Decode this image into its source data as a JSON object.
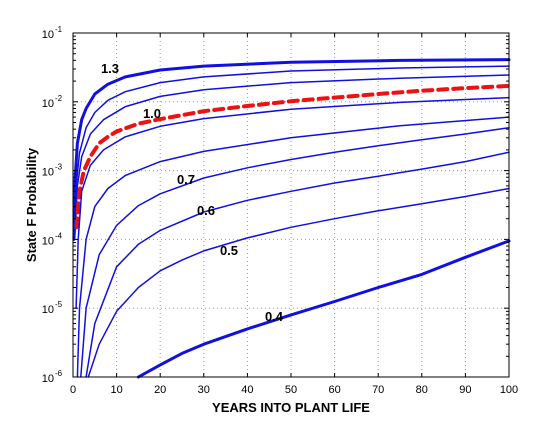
{
  "chart_data": {
    "type": "line",
    "title": "",
    "xlabel": "YEARS INTO PLANT LIFE",
    "ylabel": "State F Probability",
    "xlim": [
      0,
      100
    ],
    "ylim": [
      1e-06,
      0.1
    ],
    "yscale": "log",
    "grid": true,
    "x_ticks": [
      "0",
      "10",
      "20",
      "30",
      "40",
      "50",
      "60",
      "70",
      "80",
      "90",
      "100"
    ],
    "y_ticks": [
      {
        "base": "10",
        "exp": "-6"
      },
      {
        "base": "10",
        "exp": "-5"
      },
      {
        "base": "10",
        "exp": "-4"
      },
      {
        "base": "10",
        "exp": "-3"
      },
      {
        "base": "10",
        "exp": "-2"
      },
      {
        "base": "10",
        "exp": "-1"
      }
    ],
    "colors": {
      "curves": "#1010e0",
      "highlight": "#ee1111",
      "grid": "#9a9a9a"
    },
    "series": [
      {
        "label": "1.3",
        "style": "solid-thick",
        "points": [
          [
            0.2,
            0.0001
          ],
          [
            0.5,
            0.0008
          ],
          [
            1,
            0.0025
          ],
          [
            2,
            0.0055
          ],
          [
            3,
            0.008
          ],
          [
            5,
            0.013
          ],
          [
            8,
            0.018
          ],
          [
            12,
            0.023
          ],
          [
            20,
            0.029
          ],
          [
            30,
            0.033
          ],
          [
            50,
            0.0375
          ],
          [
            75,
            0.04
          ],
          [
            100,
            0.041
          ]
        ]
      },
      {
        "label": "",
        "style": "solid",
        "points": [
          [
            0.3,
            0.0001
          ],
          [
            0.7,
            0.0006
          ],
          [
            1.5,
            0.0018
          ],
          [
            3,
            0.0042
          ],
          [
            5,
            0.007
          ],
          [
            8,
            0.0105
          ],
          [
            12,
            0.014
          ],
          [
            20,
            0.019
          ],
          [
            30,
            0.023
          ],
          [
            50,
            0.028
          ],
          [
            75,
            0.031
          ],
          [
            100,
            0.033
          ]
        ]
      },
      {
        "label": "",
        "style": "solid",
        "points": [
          [
            0.4,
            0.0001
          ],
          [
            1,
            0.0006
          ],
          [
            2,
            0.0016
          ],
          [
            4,
            0.0034
          ],
          [
            7,
            0.0055
          ],
          [
            12,
            0.0085
          ],
          [
            20,
            0.012
          ],
          [
            30,
            0.015
          ],
          [
            50,
            0.019
          ],
          [
            75,
            0.022
          ],
          [
            100,
            0.0245
          ]
        ]
      },
      {
        "label": "1.0",
        "style": "dashed",
        "points": [
          [
            0.8,
            0.00015
          ],
          [
            1.5,
            0.0005
          ],
          [
            2.5,
            0.001
          ],
          [
            4,
            0.0016
          ],
          [
            6,
            0.0025
          ],
          [
            8,
            0.0031
          ],
          [
            10,
            0.0037
          ],
          [
            15,
            0.0048
          ],
          [
            20,
            0.0056
          ],
          [
            30,
            0.0073
          ],
          [
            40,
            0.0087
          ],
          [
            50,
            0.0102
          ],
          [
            60,
            0.0115
          ],
          [
            70,
            0.013
          ],
          [
            80,
            0.0145
          ],
          [
            90,
            0.0158
          ],
          [
            100,
            0.017
          ]
        ]
      },
      {
        "label": "",
        "style": "solid",
        "points": [
          [
            0.7,
            1e-05
          ],
          [
            1.2,
            0.0001
          ],
          [
            2,
            0.0005
          ],
          [
            4,
            0.0012
          ],
          [
            7,
            0.002
          ],
          [
            12,
            0.0031
          ],
          [
            20,
            0.0044
          ],
          [
            30,
            0.0057
          ],
          [
            50,
            0.0078
          ],
          [
            75,
            0.0098
          ],
          [
            100,
            0.0115
          ]
        ]
      },
      {
        "label": "",
        "style": "solid",
        "points": [
          [
            1,
            1e-06
          ],
          [
            1.5,
            1e-05
          ],
          [
            3,
            0.0001
          ],
          [
            5,
            0.0003
          ],
          [
            8,
            0.00055
          ],
          [
            12,
            0.00085
          ],
          [
            20,
            0.00135
          ],
          [
            30,
            0.0019
          ],
          [
            50,
            0.003
          ],
          [
            75,
            0.0045
          ],
          [
            100,
            0.006
          ]
        ]
      },
      {
        "label": "0.7",
        "style": "solid",
        "points": [
          [
            1.8,
            1e-06
          ],
          [
            3,
            1e-05
          ],
          [
            6,
            6e-05
          ],
          [
            10,
            0.00016
          ],
          [
            15,
            0.00031
          ],
          [
            20,
            0.00046
          ],
          [
            30,
            0.00078
          ],
          [
            40,
            0.0011
          ],
          [
            50,
            0.00145
          ],
          [
            60,
            0.00185
          ],
          [
            70,
            0.0023
          ],
          [
            80,
            0.0028
          ],
          [
            90,
            0.0034
          ],
          [
            100,
            0.0042
          ]
        ]
      },
      {
        "label": "0.6",
        "style": "solid",
        "points": [
          [
            3,
            1e-06
          ],
          [
            5,
            6e-06
          ],
          [
            10,
            4e-05
          ],
          [
            15,
            8.5e-05
          ],
          [
            20,
            0.000135
          ],
          [
            30,
            0.00025
          ],
          [
            40,
            0.00037
          ],
          [
            50,
            0.0005
          ],
          [
            60,
            0.00066
          ],
          [
            70,
            0.00083
          ],
          [
            80,
            0.00105
          ],
          [
            90,
            0.00135
          ],
          [
            100,
            0.00185
          ]
        ]
      },
      {
        "label": "0.5",
        "style": "solid",
        "points": [
          [
            3.5,
            1e-06
          ],
          [
            6,
            3e-06
          ],
          [
            10,
            9e-06
          ],
          [
            15,
            2e-05
          ],
          [
            20,
            3.5e-05
          ],
          [
            25,
            5e-05
          ],
          [
            30,
            6.8e-05
          ],
          [
            40,
            0.000105
          ],
          [
            50,
            0.00015
          ],
          [
            60,
            0.0002
          ],
          [
            70,
            0.00026
          ],
          [
            80,
            0.00033
          ],
          [
            90,
            0.00042
          ],
          [
            100,
            0.00055
          ]
        ]
      },
      {
        "label": "0.4",
        "style": "solid-thick",
        "points": [
          [
            15,
            1e-06
          ],
          [
            20,
            1.5e-06
          ],
          [
            25,
            2.2e-06
          ],
          [
            30,
            3e-06
          ],
          [
            40,
            5e-06
          ],
          [
            50,
            8e-06
          ],
          [
            60,
            1.25e-05
          ],
          [
            70,
            2e-05
          ],
          [
            80,
            3.1e-05
          ],
          [
            90,
            5.5e-05
          ],
          [
            100,
            9.5e-05
          ]
        ]
      }
    ]
  }
}
